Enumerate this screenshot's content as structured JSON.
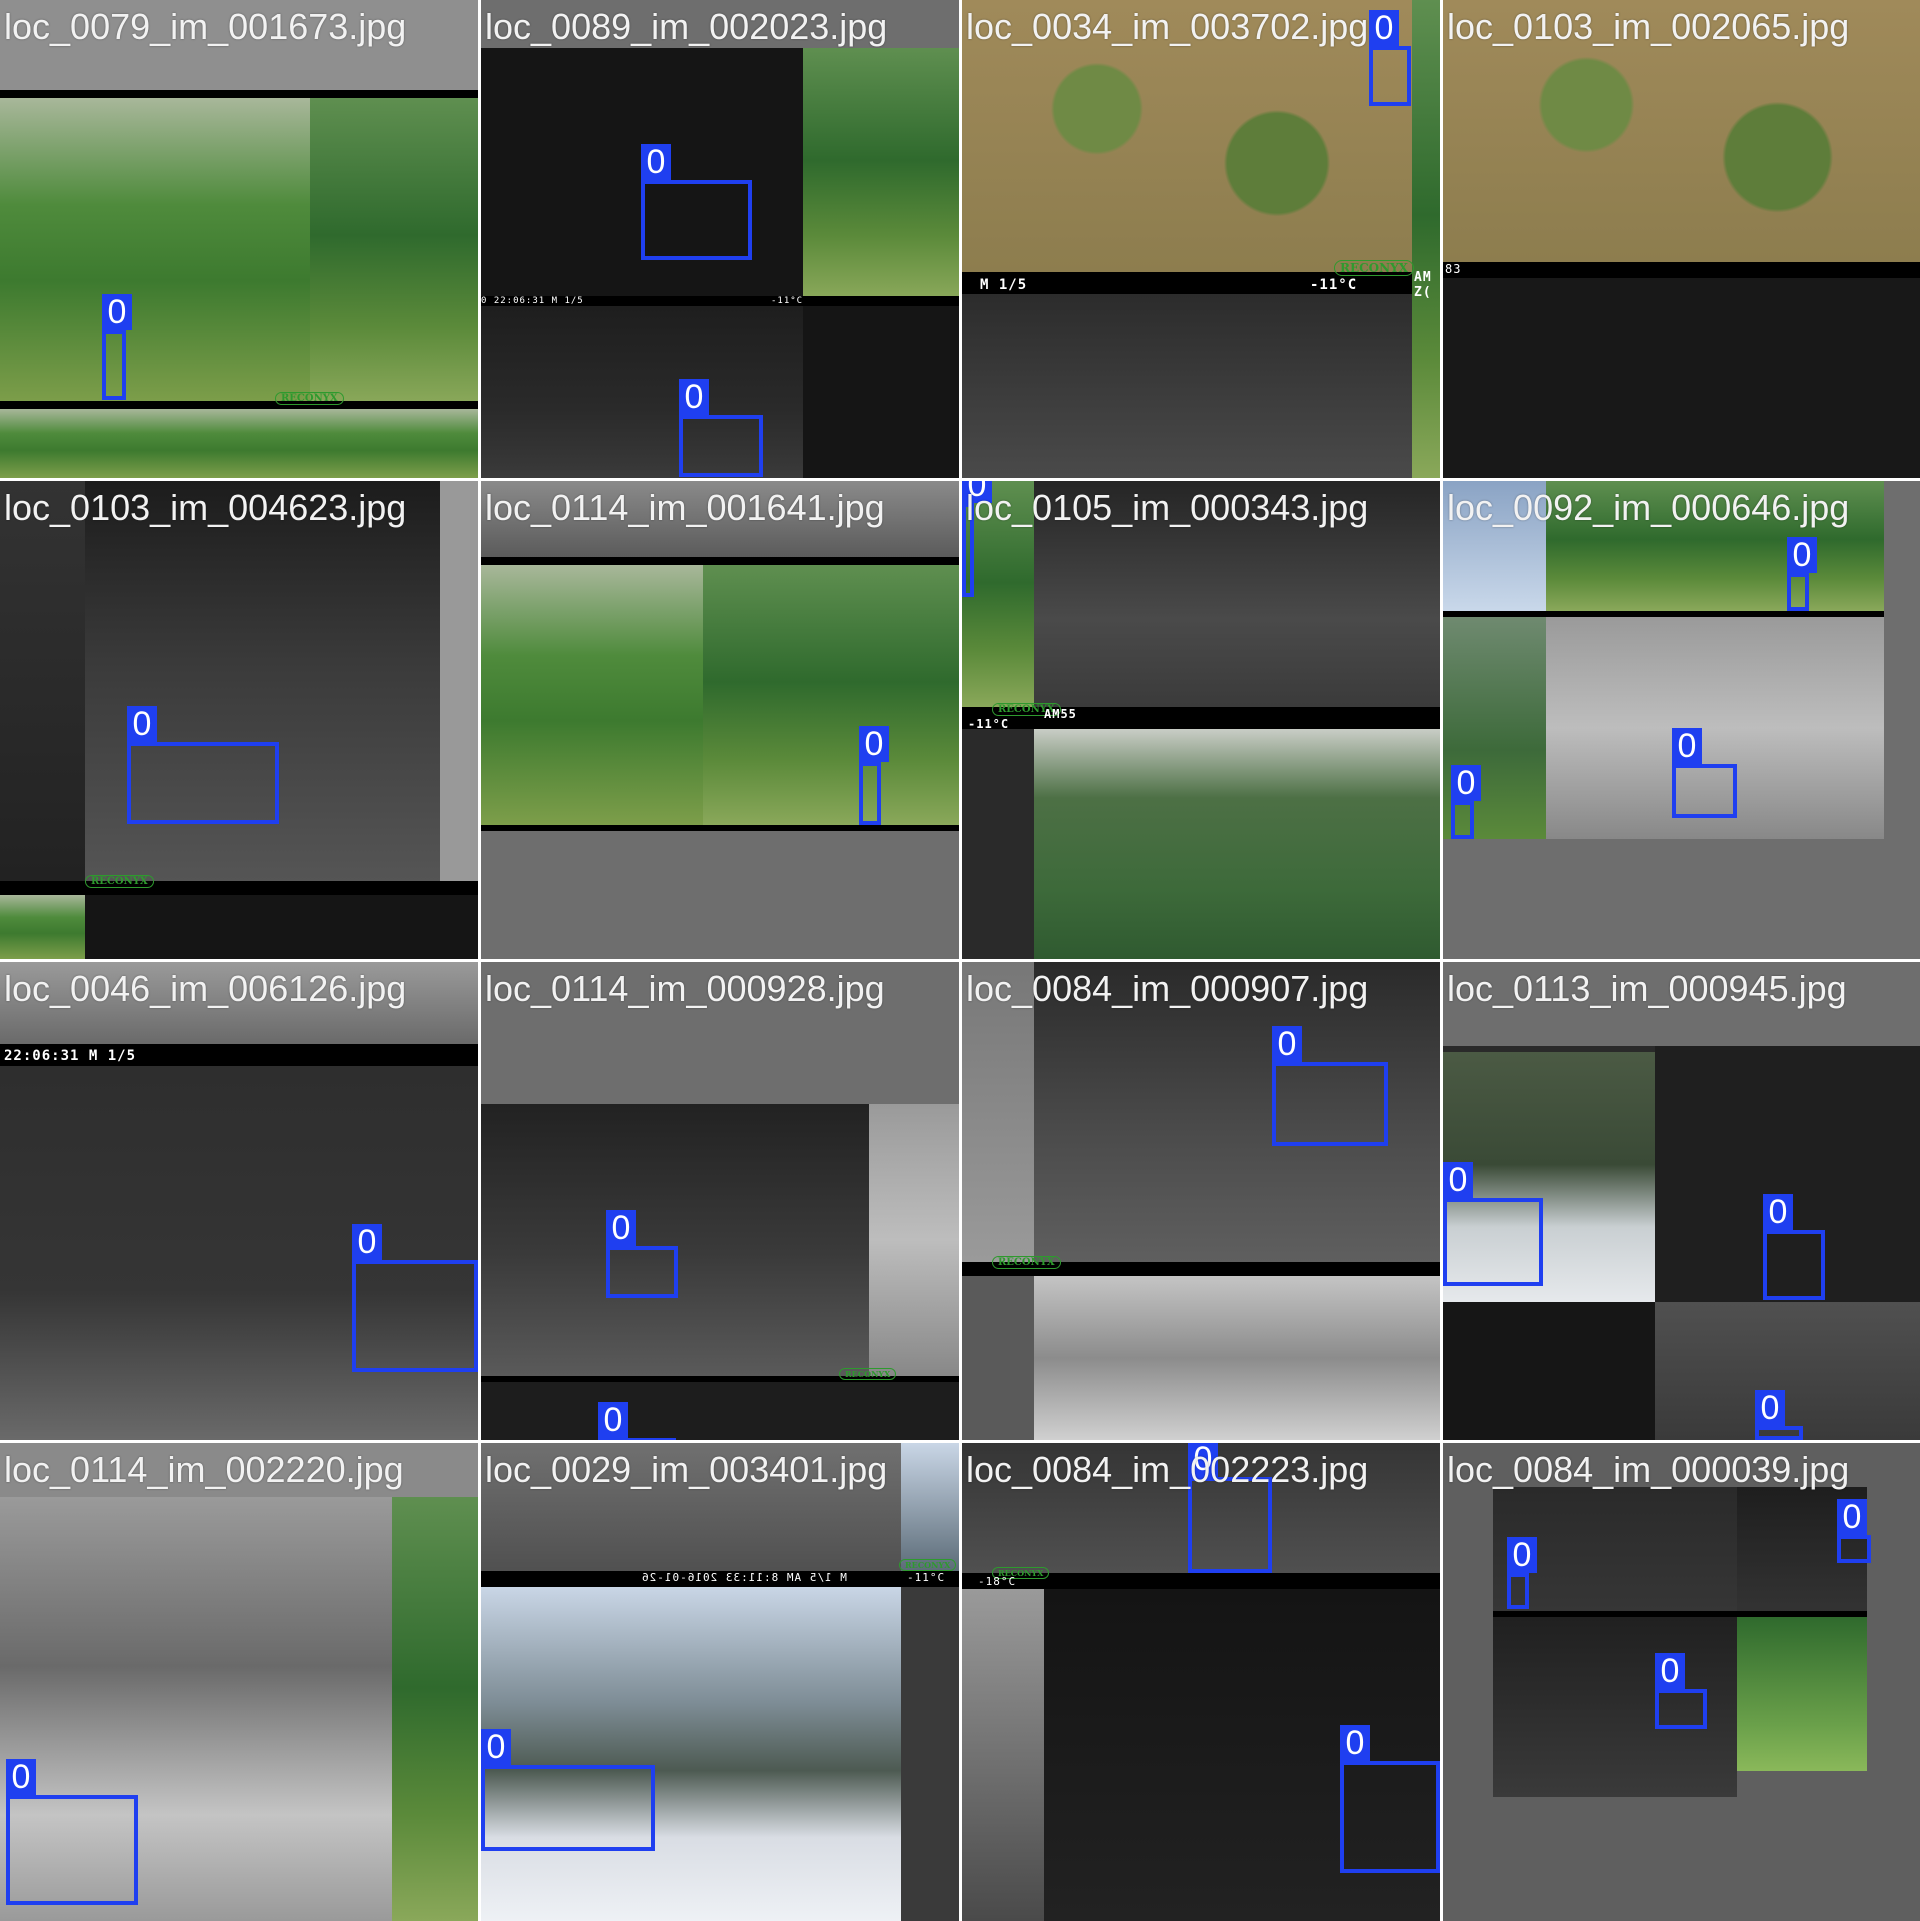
{
  "tiles": [
    {
      "filename": "loc_0079_im_001673.jpg",
      "label": "0",
      "label2": ""
    },
    {
      "filename": "loc_0089_im_002023.jpg",
      "label": "0",
      "label2": "0",
      "overlay": "0 22:06:31     M 1/5",
      "overlay2": "-11°C"
    },
    {
      "filename": "loc_0034_im_003702.jpg",
      "label": "0",
      "overlay": "M 1/5",
      "overlay2": "-11°C",
      "brand": "RECONYX",
      "side": "AM Z("
    },
    {
      "filename": "loc_0103_im_002065.jpg",
      "side": "83"
    },
    {
      "filename": "loc_0103_im_004623.jpg",
      "label": "0",
      "brand": "RECONYX"
    },
    {
      "filename": "loc_0114_im_001641.jpg",
      "label": "0"
    },
    {
      "filename": "loc_0105_im_000343.jpg",
      "label": "0",
      "overlay": "-11°C",
      "overlay2": "AM55",
      "brand": "RECONYX"
    },
    {
      "filename": "loc_0092_im_000646.jpg",
      "label": "0",
      "label2": "0",
      "label3": "0"
    },
    {
      "filename": "loc_0046_im_006126.jpg",
      "label": "0",
      "overlay": "22:06:31       M 1/5"
    },
    {
      "filename": "loc_0114_im_000928.jpg",
      "label": "0",
      "label2": "0",
      "brand": "RECONYX"
    },
    {
      "filename": "loc_0084_im_000907.jpg",
      "label": "0",
      "brand": "RECONYX"
    },
    {
      "filename": "loc_0113_im_000945.jpg",
      "label": "0",
      "label2": "0",
      "label3": "0"
    },
    {
      "filename": "loc_0114_im_002220.jpg",
      "label": "0"
    },
    {
      "filename": "loc_0029_im_003401.jpg",
      "label": "0",
      "overlay": "M 1/5   AM 8:11:33 2016-01-26",
      "overlay2": "-11°C",
      "brand": "RECONYX"
    },
    {
      "filename": "loc_0084_im_002223.jpg",
      "label": "0",
      "label2": "0",
      "overlay": "-18°C",
      "brand": "RECONYX"
    },
    {
      "filename": "loc_0084_im_000039.jpg",
      "label": "0",
      "label2": "0",
      "label3": "0"
    }
  ],
  "colors": {
    "box": "#1f3ff0",
    "caption": "#f2f2f2",
    "padding_gray": "#6e6e6e"
  }
}
